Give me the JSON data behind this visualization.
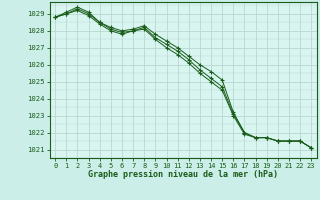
{
  "title": "Graphe pression niveau de la mer (hPa)",
  "bg_color": "#cceee8",
  "plot_bg_color": "#d8f5f0",
  "grid_color": "#b8d8d4",
  "line_color": "#1a5c1a",
  "marker_color": "#1a5c1a",
  "xlim": [
    -0.5,
    23.5
  ],
  "ylim": [
    1020.5,
    1029.7
  ],
  "yticks": [
    1021,
    1022,
    1023,
    1024,
    1025,
    1026,
    1027,
    1028,
    1029
  ],
  "xticks": [
    0,
    1,
    2,
    3,
    4,
    5,
    6,
    7,
    8,
    9,
    10,
    11,
    12,
    13,
    14,
    15,
    16,
    17,
    18,
    19,
    20,
    21,
    22,
    23
  ],
  "series": [
    [
      1028.8,
      1029.1,
      1029.4,
      1029.1,
      1028.5,
      1028.2,
      1028.0,
      1028.1,
      1028.3,
      1027.8,
      1027.4,
      1027.0,
      1026.5,
      1026.0,
      1025.6,
      1025.1,
      1023.2,
      1022.0,
      1021.7,
      1021.7,
      1021.5,
      1021.5,
      1021.5,
      1021.1
    ],
    [
      1028.8,
      1029.0,
      1029.2,
      1028.9,
      1028.4,
      1028.0,
      1027.8,
      1028.0,
      1028.1,
      1027.5,
      1027.0,
      1026.6,
      1026.1,
      1025.5,
      1025.0,
      1024.5,
      1023.0,
      1021.9,
      1021.7,
      1021.7,
      1021.5,
      1021.5,
      1021.5,
      1021.1
    ],
    [
      1028.8,
      1029.0,
      1029.3,
      1029.0,
      1028.5,
      1028.1,
      1027.9,
      1028.0,
      1028.2,
      1027.6,
      1027.2,
      1026.8,
      1026.3,
      1025.7,
      1025.2,
      1024.7,
      1023.1,
      1022.0,
      1021.7,
      1021.7,
      1021.5,
      1021.5,
      1021.5,
      1021.1
    ]
  ]
}
